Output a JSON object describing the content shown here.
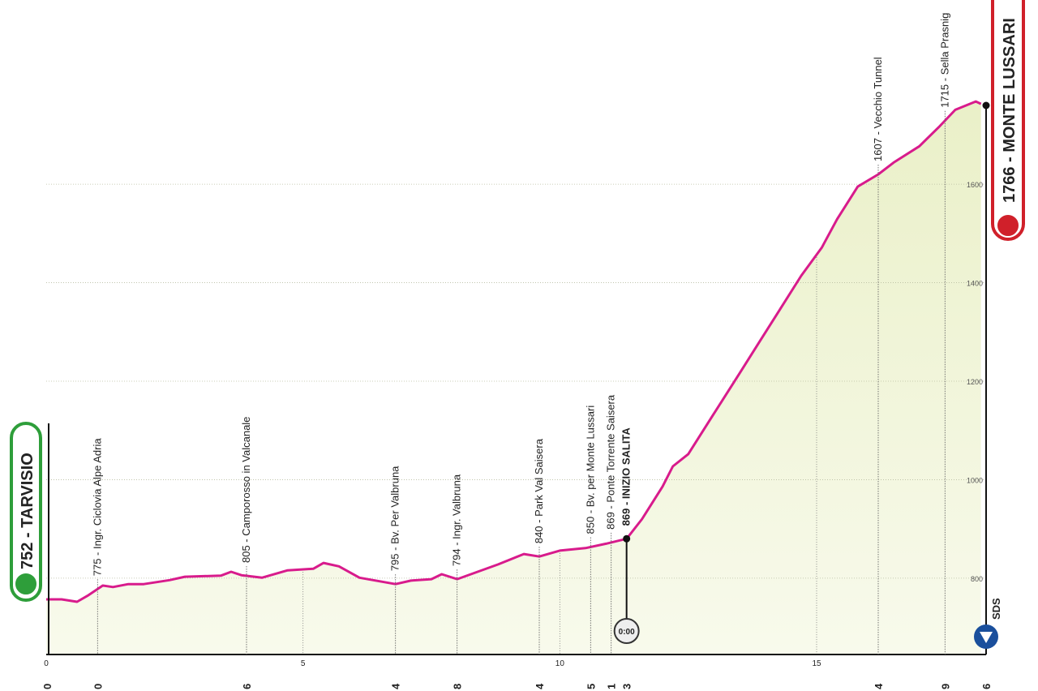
{
  "chart_data": {
    "type": "area",
    "color": "#d81b8c",
    "fill": "#f1f5dc",
    "x": [
      0,
      0.3,
      0.6,
      0.8,
      1.1,
      1.3,
      1.6,
      1.9,
      2.4,
      2.7,
      3.4,
      3.6,
      3.8,
      4.2,
      4.7,
      5.2,
      5.4,
      5.7,
      6.1,
      6.8,
      7.1,
      7.5,
      7.7,
      8.0,
      8.4,
      8.8,
      9.3,
      9.6,
      10.0,
      10.5,
      10.9,
      11.3,
      11.6,
      12.0,
      12.2,
      12.5,
      13.0,
      13.5,
      13.9,
      14.3,
      14.7,
      15.1,
      15.4,
      15.8,
      16.2,
      16.5,
      17.0,
      17.4,
      17.7,
      18.1,
      18.2
    ],
    "values": [
      757,
      757,
      752,
      764,
      785,
      782,
      788,
      788,
      796,
      803,
      805,
      813,
      806,
      801,
      816,
      819,
      831,
      824,
      801,
      788,
      795,
      798,
      808,
      798,
      813,
      828,
      849,
      844,
      856,
      861,
      870,
      880,
      920,
      986,
      1027,
      1052,
      1134,
      1216,
      1282,
      1348,
      1414,
      1471,
      1529,
      1595,
      1620,
      1644,
      1677,
      1718,
      1751,
      1768,
      1763
    ],
    "xlim": [
      0,
      18.3
    ],
    "ylim": [
      645,
      1974
    ],
    "xticks": [
      0,
      5,
      10,
      15
    ],
    "yticks": [
      800,
      1000,
      1200,
      1400,
      1600
    ],
    "grid": true,
    "start": {
      "name": "752 - TARVISIO",
      "km": 0,
      "bottom": "0"
    },
    "finish": {
      "name": "1766 - MONTE LUSSARI",
      "km": 18.2,
      "bottom": "6"
    },
    "waypoints": [
      {
        "label": "775 - Ingr. Ciclovia Alpe Adria",
        "km": 1.0,
        "bottom": "0"
      },
      {
        "label": "805 - Camporosso in Valcanale",
        "km": 3.9,
        "bottom": "6"
      },
      {
        "label": "795 - Bv. Per Valbruna",
        "km": 6.8,
        "bottom": "4"
      },
      {
        "label": "794 - Ingr. Valbruna",
        "km": 8.0,
        "bottom": "8"
      },
      {
        "label": "840 - Park Val Saisera",
        "km": 9.6,
        "bottom": "4"
      },
      {
        "label": "850 - Bv. per Monte Lussari",
        "km": 10.6,
        "bottom": "5"
      },
      {
        "label": "869 - Ponte Torrente Saisera",
        "km": 11.0,
        "bottom": "1"
      },
      {
        "label": "869 - INIZIO SALITA",
        "km": 11.3,
        "bottom": "3",
        "bold": true
      },
      {
        "label": "1607 - Vecchio Tunnel",
        "km": 16.2,
        "bottom": "4"
      },
      {
        "label": "1715 - Sella Prasnig",
        "km": 17.5,
        "bottom": "9"
      }
    ],
    "timer": "0:00",
    "sponsor": "SDS"
  }
}
